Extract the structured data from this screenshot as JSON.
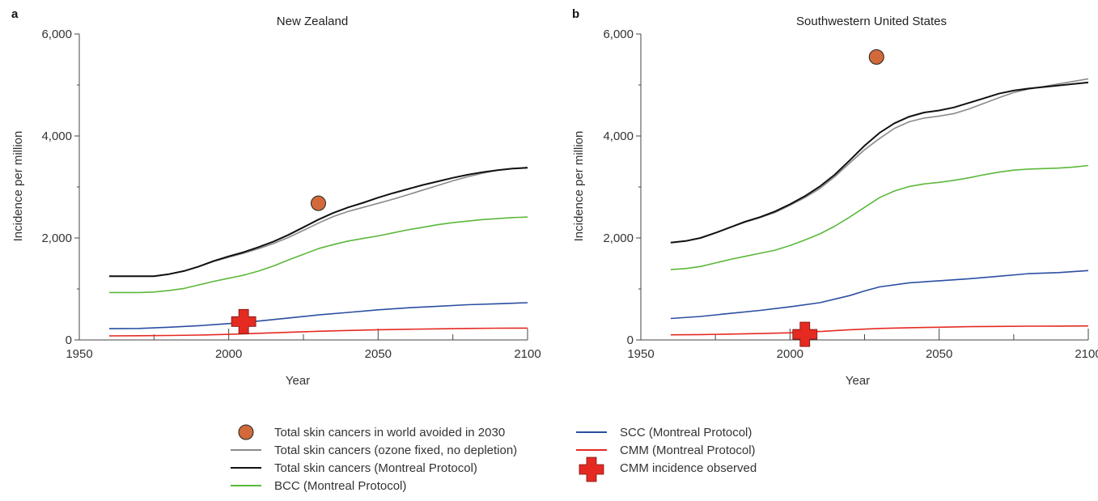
{
  "chart_data": [
    {
      "type": "line",
      "panel_letter": "a",
      "title": "New Zealand",
      "xlabel": "Year",
      "ylabel": "Incidence per million",
      "xlim": [
        1950,
        2100
      ],
      "ylim": [
        0,
        6000
      ],
      "xticks": [
        1950,
        2000,
        2050,
        2100
      ],
      "xtick_labels": [
        "1950",
        "2000",
        "2050",
        "2100"
      ],
      "yticks": [
        0,
        2000,
        4000,
        6000
      ],
      "ytick_labels": [
        "0",
        "2,000",
        "4,000",
        "6,000"
      ],
      "grid": false,
      "series": [
        {
          "key": "ozone_fixed",
          "color": "#8a8a8a",
          "x": [
            1960,
            1970,
            1975,
            1980,
            1985,
            1990,
            1995,
            2000,
            2005,
            2010,
            2015,
            2020,
            2025,
            2030,
            2035,
            2040,
            2045,
            2050,
            2055,
            2060,
            2065,
            2070,
            2075,
            2080,
            2085,
            2090,
            2095,
            2100
          ],
          "y": [
            1250,
            1250,
            1250,
            1290,
            1350,
            1440,
            1540,
            1620,
            1700,
            1790,
            1890,
            2010,
            2150,
            2290,
            2420,
            2520,
            2600,
            2680,
            2760,
            2850,
            2940,
            3030,
            3120,
            3200,
            3270,
            3330,
            3360,
            3370
          ]
        },
        {
          "key": "montreal_total",
          "color": "#111111",
          "x": [
            1960,
            1970,
            1975,
            1980,
            1985,
            1990,
            1995,
            2000,
            2005,
            2010,
            2015,
            2020,
            2025,
            2030,
            2035,
            2040,
            2045,
            2050,
            2055,
            2060,
            2065,
            2070,
            2075,
            2080,
            2085,
            2090,
            2095,
            2100
          ],
          "y": [
            1250,
            1250,
            1250,
            1290,
            1350,
            1440,
            1550,
            1640,
            1720,
            1820,
            1930,
            2060,
            2210,
            2360,
            2490,
            2600,
            2690,
            2790,
            2880,
            2960,
            3040,
            3110,
            3180,
            3240,
            3290,
            3330,
            3360,
            3380
          ]
        },
        {
          "key": "bcc",
          "color": "#5cb83a",
          "x": [
            1960,
            1970,
            1975,
            1980,
            1985,
            1990,
            1995,
            2000,
            2005,
            2010,
            2015,
            2020,
            2025,
            2030,
            2035,
            2040,
            2045,
            2050,
            2055,
            2060,
            2065,
            2070,
            2075,
            2080,
            2085,
            2090,
            2095,
            2100
          ],
          "y": [
            930,
            930,
            940,
            970,
            1010,
            1080,
            1150,
            1210,
            1270,
            1350,
            1450,
            1570,
            1680,
            1790,
            1870,
            1940,
            1990,
            2040,
            2100,
            2160,
            2210,
            2260,
            2300,
            2330,
            2360,
            2380,
            2400,
            2410
          ]
        },
        {
          "key": "scc",
          "color": "#2b4ea2",
          "x": [
            1960,
            1970,
            1980,
            1990,
            2000,
            2010,
            2020,
            2030,
            2040,
            2050,
            2060,
            2070,
            2080,
            2090,
            2100
          ],
          "y": [
            220,
            225,
            250,
            280,
            320,
            370,
            430,
            490,
            540,
            590,
            630,
            660,
            690,
            710,
            730
          ]
        },
        {
          "key": "cmm",
          "color": "#e52a22",
          "x": [
            1960,
            1970,
            1980,
            1990,
            2000,
            2010,
            2020,
            2030,
            2040,
            2050,
            2060,
            2070,
            2080,
            2090,
            2100
          ],
          "y": [
            80,
            82,
            88,
            95,
            110,
            130,
            150,
            170,
            185,
            200,
            210,
            218,
            225,
            230,
            232
          ]
        }
      ],
      "avoided_2030": {
        "x": 2030,
        "y": 2680
      },
      "observed_cmm": {
        "x": 2005,
        "y": 360
      }
    },
    {
      "type": "line",
      "panel_letter": "b",
      "title": "Southwestern United States",
      "xlabel": "Year",
      "ylabel": "Incidence per million",
      "xlim": [
        1950,
        2100
      ],
      "ylim": [
        0,
        6000
      ],
      "xticks": [
        1950,
        2000,
        2050,
        2100
      ],
      "xtick_labels": [
        "1950",
        "2000",
        "2050",
        "2100"
      ],
      "yticks": [
        0,
        2000,
        4000,
        6000
      ],
      "ytick_labels": [
        "0",
        "2,000",
        "4,000",
        "6,000"
      ],
      "grid": false,
      "series": [
        {
          "key": "ozone_fixed",
          "color": "#8a8a8a",
          "x": [
            1960,
            1965,
            1970,
            1975,
            1980,
            1985,
            1990,
            1995,
            2000,
            2005,
            2010,
            2015,
            2020,
            2025,
            2030,
            2035,
            2040,
            2045,
            2050,
            2055,
            2060,
            2065,
            2070,
            2075,
            2080,
            2085,
            2090,
            2095,
            2100
          ],
          "y": [
            1910,
            1940,
            2000,
            2100,
            2210,
            2310,
            2400,
            2500,
            2640,
            2790,
            2970,
            3200,
            3470,
            3730,
            3950,
            4150,
            4280,
            4350,
            4390,
            4440,
            4530,
            4640,
            4750,
            4850,
            4920,
            4970,
            5020,
            5070,
            5120
          ]
        },
        {
          "key": "montreal_total",
          "color": "#111111",
          "x": [
            1960,
            1965,
            1970,
            1975,
            1980,
            1985,
            1990,
            1995,
            2000,
            2005,
            2010,
            2015,
            2020,
            2025,
            2030,
            2035,
            2040,
            2045,
            2050,
            2055,
            2060,
            2065,
            2070,
            2075,
            2080,
            2085,
            2090,
            2095,
            2100
          ],
          "y": [
            1910,
            1940,
            2000,
            2100,
            2210,
            2320,
            2410,
            2520,
            2660,
            2820,
            3010,
            3240,
            3520,
            3810,
            4060,
            4250,
            4380,
            4460,
            4500,
            4560,
            4650,
            4740,
            4830,
            4890,
            4930,
            4960,
            4990,
            5020,
            5050
          ]
        },
        {
          "key": "bcc",
          "color": "#5cb83a",
          "x": [
            1960,
            1965,
            1970,
            1975,
            1980,
            1985,
            1990,
            1995,
            2000,
            2005,
            2010,
            2015,
            2020,
            2025,
            2030,
            2035,
            2040,
            2045,
            2050,
            2055,
            2060,
            2065,
            2070,
            2075,
            2080,
            2085,
            2090,
            2095,
            2100
          ],
          "y": [
            1380,
            1400,
            1440,
            1510,
            1580,
            1640,
            1700,
            1760,
            1850,
            1960,
            2080,
            2230,
            2410,
            2600,
            2790,
            2920,
            3010,
            3060,
            3090,
            3130,
            3180,
            3240,
            3290,
            3330,
            3350,
            3360,
            3370,
            3390,
            3420
          ]
        },
        {
          "key": "scc",
          "color": "#2b4ea2",
          "x": [
            1960,
            1970,
            1980,
            1990,
            2000,
            2010,
            2020,
            2025,
            2030,
            2040,
            2050,
            2060,
            2070,
            2080,
            2090,
            2100
          ],
          "y": [
            420,
            460,
            520,
            580,
            650,
            730,
            870,
            960,
            1040,
            1120,
            1160,
            1200,
            1250,
            1300,
            1320,
            1360
          ]
        },
        {
          "key": "cmm",
          "color": "#e52a22",
          "x": [
            1960,
            1970,
            1980,
            1990,
            2000,
            2010,
            2020,
            2030,
            2040,
            2050,
            2060,
            2070,
            2080,
            2090,
            2100
          ],
          "y": [
            100,
            105,
            115,
            125,
            140,
            165,
            200,
            225,
            240,
            250,
            260,
            265,
            270,
            272,
            275
          ]
        }
      ],
      "avoided_2030": {
        "x": 2029,
        "y": 5550
      },
      "observed_cmm": {
        "x": 2005,
        "y": 110
      }
    }
  ],
  "legend": {
    "placement": "bottom-center",
    "items": [
      {
        "key": "avoided_2030",
        "marker": "circle",
        "color": "#d2693a",
        "label": "Total skin cancers in world avoided in 2030"
      },
      {
        "key": "ozone_fixed",
        "marker": "line",
        "color": "#8a8a8a",
        "label": "Total skin cancers (ozone fixed, no depletion)"
      },
      {
        "key": "montreal_total",
        "marker": "line",
        "color": "#111111",
        "label": "Total skin cancers (Montreal Protocol)"
      },
      {
        "key": "bcc",
        "marker": "line",
        "color": "#5cb83a",
        "label": "BCC (Montreal Protocol)"
      },
      {
        "key": "scc",
        "marker": "line",
        "color": "#2b4ea2",
        "label": "SCC (Montreal Protocol)"
      },
      {
        "key": "cmm",
        "marker": "line",
        "color": "#e52a22",
        "label": "CMM (Montreal Protocol)"
      },
      {
        "key": "observed_cmm",
        "marker": "cross",
        "color": "#e52a22",
        "label": "CMM incidence observed"
      }
    ]
  }
}
